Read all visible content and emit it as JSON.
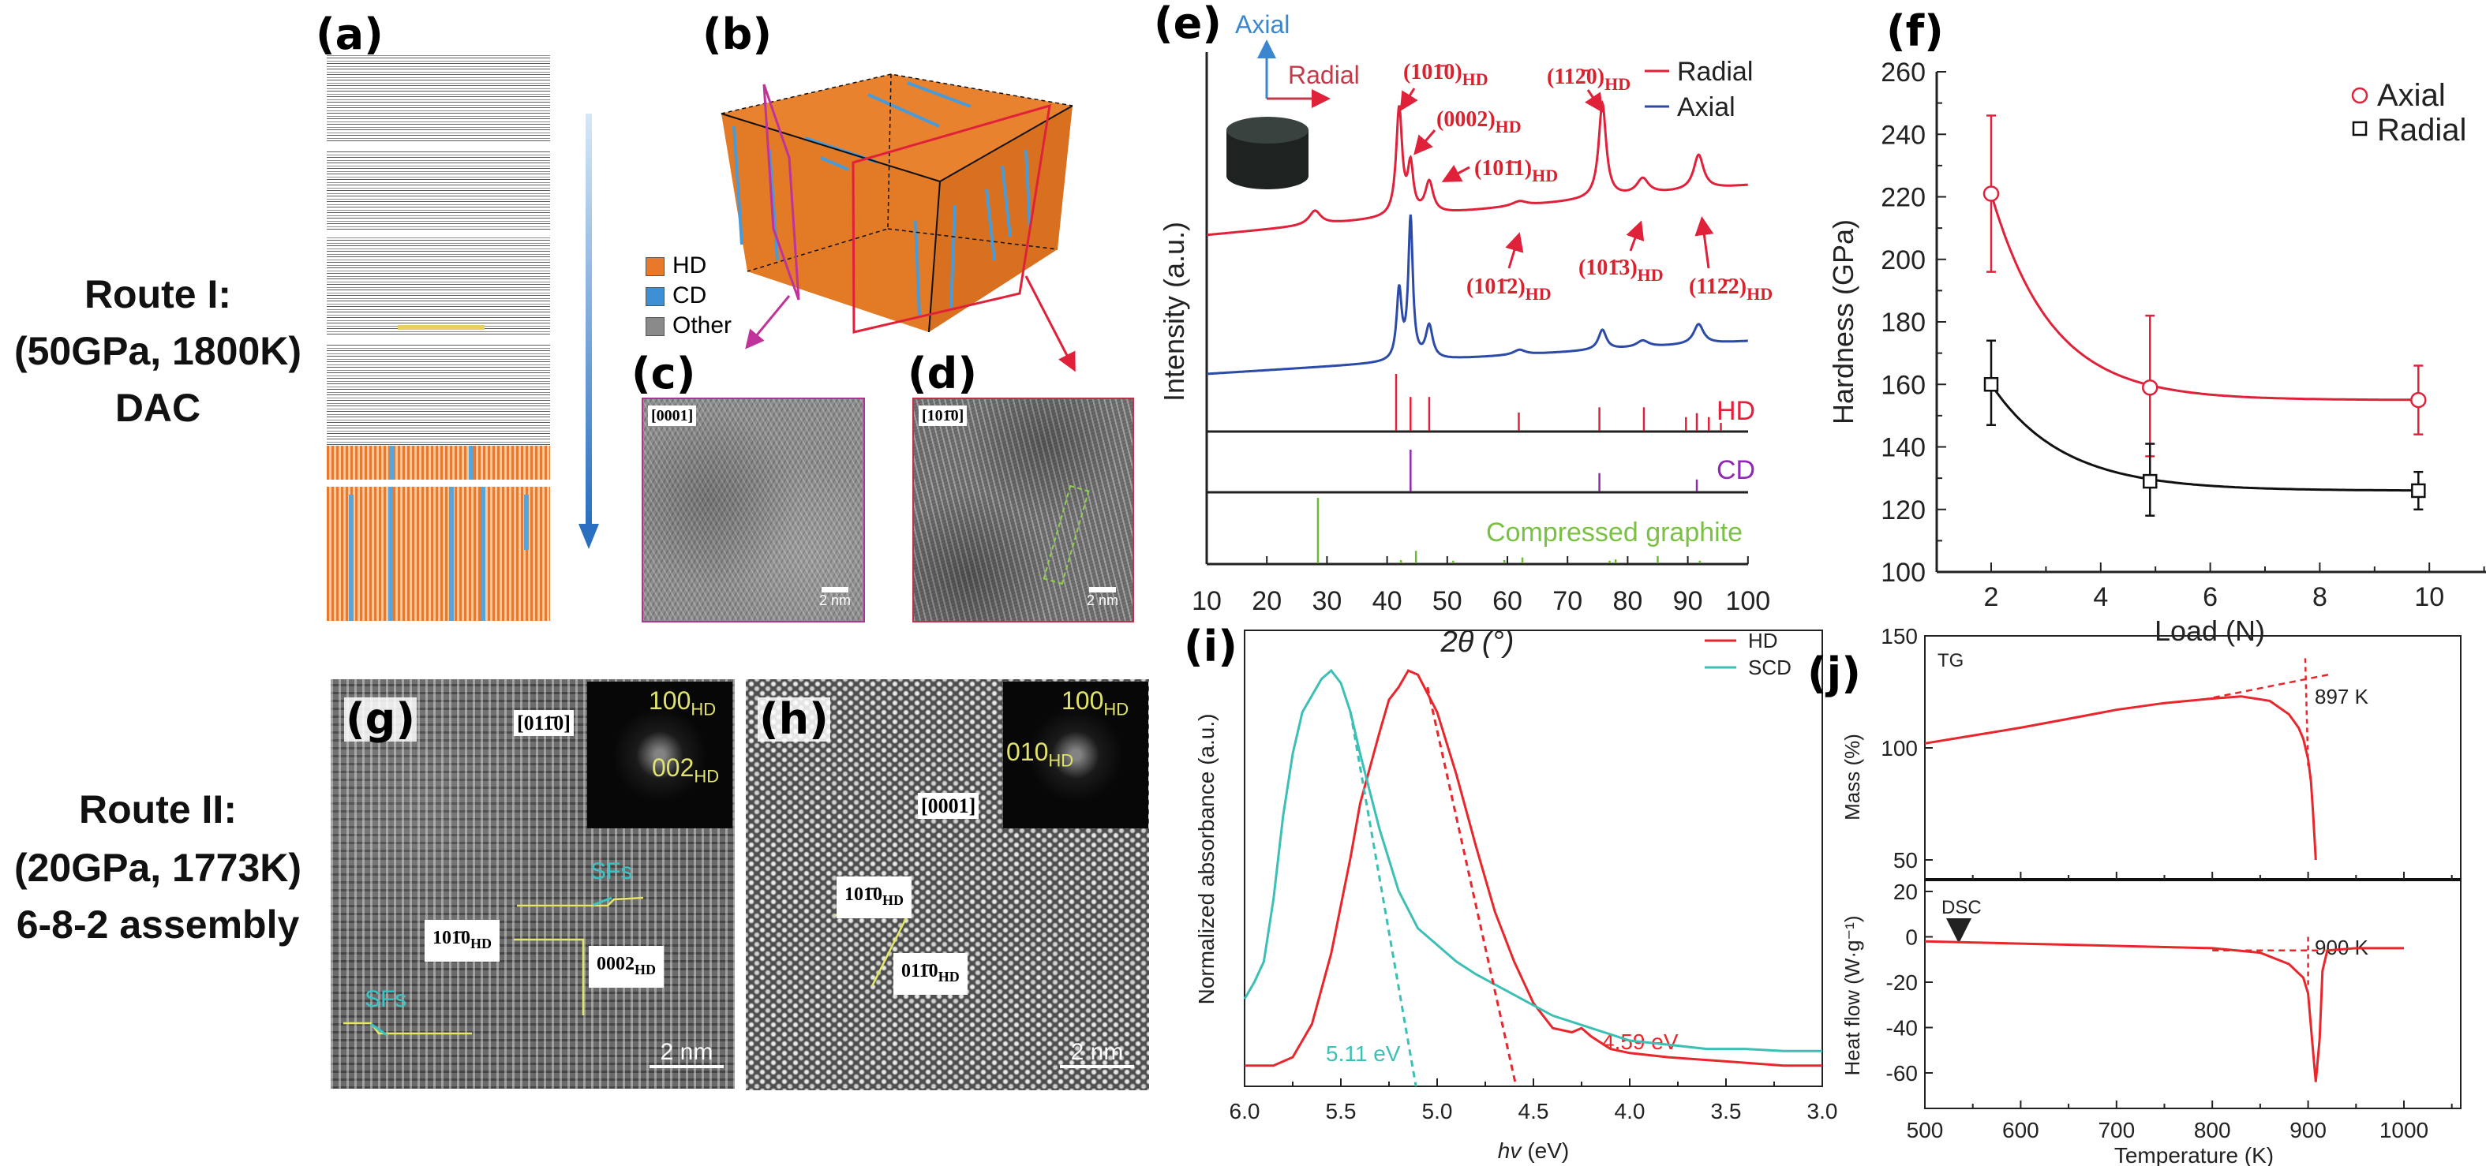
{
  "routes": [
    {
      "title": "Route I:",
      "conditions": "(50GPa, 1800K)",
      "method": "DAC"
    },
    {
      "title": "Route II:",
      "conditions": "(20GPa, 1773K)",
      "method": "6-8-2 assembly"
    }
  ],
  "panel_labels": {
    "a": "(a)",
    "b": "(b)",
    "c": "(c)",
    "d": "(d)",
    "e": "(e)",
    "f": "(f)",
    "g": "(g)",
    "h": "(h)",
    "i": "(i)",
    "j": "(j)"
  },
  "panel_b": {
    "legend": [
      {
        "label": "HD",
        "color": "#e8782a"
      },
      {
        "label": "CD",
        "color": "#3d8fd6"
      },
      {
        "label": "Other",
        "color": "#8a8a8a"
      }
    ]
  },
  "panel_c": {
    "zone_axis": "[0001]",
    "scale_bar": "2 nm"
  },
  "panel_d": {
    "zone_axis": "[101̄0]",
    "scale_bar": "2 nm"
  },
  "panel_g": {
    "zone_axis": "[011̄0]",
    "fft": [
      {
        "index": "100",
        "sub": "HD"
      },
      {
        "index": "002",
        "sub": "HD"
      }
    ],
    "planes": [
      {
        "index": "101̄0",
        "sub": "HD"
      },
      {
        "index": "0002",
        "sub": "HD"
      }
    ],
    "defects": [
      "SFs",
      "SFs"
    ],
    "scale_bar": "2 nm"
  },
  "panel_h": {
    "zone_axis": "[0001]",
    "fft": [
      {
        "index": "100",
        "sub": "HD"
      },
      {
        "index": "010",
        "sub": "HD"
      }
    ],
    "planes": [
      {
        "index": "101̄0",
        "sub": "HD"
      },
      {
        "index": "011̄0",
        "sub": "HD"
      }
    ],
    "scale_bar": "2 nm"
  },
  "chart_data": [
    {
      "panel": "e",
      "type": "line",
      "xlabel": "2θ (°)",
      "ylabel": "Intensity (a.u.)",
      "xlim": [
        10,
        100
      ],
      "xticks": [
        10,
        20,
        30,
        40,
        50,
        60,
        70,
        80,
        90,
        100
      ],
      "inset": {
        "axial": "Axial",
        "radial": "Radial"
      },
      "series": [
        {
          "name": "Radial",
          "color": "#e0213a",
          "baseline_slope": 0.0035,
          "peaks": [
            [
              28,
              0.09,
              1.2
            ],
            [
              42,
              0.68,
              0.6
            ],
            [
              43.9,
              0.3,
              0.55
            ],
            [
              47,
              0.2,
              0.8
            ],
            [
              62,
              0.03,
              1.5
            ],
            [
              75.8,
              0.6,
              0.75
            ],
            [
              82.5,
              0.1,
              1.2
            ],
            [
              91.8,
              0.22,
              1.0
            ]
          ]
        },
        {
          "name": "Axial",
          "color": "#2c4aa8",
          "baseline_slope": 0.0022,
          "peaks": [
            [
              42,
              0.42,
              0.5
            ],
            [
              43.9,
              0.85,
              0.45
            ],
            [
              47,
              0.2,
              0.7
            ],
            [
              62,
              0.03,
              1.2
            ],
            [
              75.8,
              0.12,
              0.8
            ],
            [
              82.5,
              0.04,
              1.2
            ],
            [
              91.8,
              0.12,
              1.0
            ]
          ]
        }
      ],
      "peak_labels": [
        {
          "index": "(101̄0)",
          "sub": "HD",
          "x": 42
        },
        {
          "index": "(0002)",
          "sub": "HD",
          "x": 43.9
        },
        {
          "index": "(101̄1)",
          "sub": "HD",
          "x": 47
        },
        {
          "index": "(101̄2)",
          "sub": "HD",
          "x": 62
        },
        {
          "index": "(112̄0)",
          "sub": "HD",
          "x": 75.8
        },
        {
          "index": "(101̄3)",
          "sub": "HD",
          "x": 82.5
        },
        {
          "index": "(112̄2)",
          "sub": "HD",
          "x": 91.8
        }
      ],
      "references": [
        {
          "name": "HD",
          "color": "#e0213a",
          "lines": [
            [
              41.5,
              1.0
            ],
            [
              43.9,
              0.6
            ],
            [
              47.0,
              0.6
            ],
            [
              61.9,
              0.33
            ],
            [
              75.3,
              0.42
            ],
            [
              82.7,
              0.42
            ],
            [
              89.7,
              0.25
            ],
            [
              91.5,
              0.32
            ],
            [
              93.5,
              0.25
            ],
            [
              95.5,
              0.15
            ]
          ]
        },
        {
          "name": "CD",
          "color": "#8e2bb0",
          "lines": [
            [
              43.9,
              1.0
            ],
            [
              75.3,
              0.45
            ],
            [
              91.5,
              0.3
            ]
          ]
        },
        {
          "name": "Compressed graphite",
          "color": "#6cbd35",
          "lines": [
            [
              28.5,
              1.0
            ],
            [
              42.3,
              0.06
            ],
            [
              44.8,
              0.2
            ],
            [
              51.0,
              0.05
            ],
            [
              59.5,
              0.06
            ],
            [
              62.5,
              0.1
            ],
            [
              77.0,
              0.05
            ],
            [
              78.0,
              0.07
            ],
            [
              85.0,
              0.12
            ],
            [
              92.0,
              0.05
            ]
          ]
        }
      ],
      "legend_position": "top-right"
    },
    {
      "panel": "f",
      "type": "scatter",
      "xlabel": "Load (N)",
      "ylabel": "Hardness (GPa)",
      "xlim": [
        1,
        11.1
      ],
      "ylim": [
        100,
        260
      ],
      "xticks": [
        2,
        4,
        6,
        8,
        10
      ],
      "yticks": [
        100,
        120,
        140,
        160,
        180,
        200,
        220,
        240,
        260
      ],
      "series": [
        {
          "name": "Axial",
          "marker": "circle",
          "color": "#e0213a",
          "x": [
            2,
            4.9,
            9.8
          ],
          "y": [
            221,
            159,
            155
          ],
          "err_low": [
            196,
            137,
            144
          ],
          "err_high": [
            246,
            182,
            166
          ],
          "fit": {
            "plateau": 155,
            "amplitude": 66,
            "decay": 1.1
          }
        },
        {
          "name": "Radial",
          "marker": "square",
          "color": "#111111",
          "x": [
            2,
            4.9,
            9.8
          ],
          "y": [
            160,
            129,
            126
          ],
          "err_low": [
            147,
            118,
            120
          ],
          "err_high": [
            174,
            141,
            132
          ],
          "fit": {
            "plateau": 126,
            "amplitude": 34,
            "decay": 1.3
          }
        }
      ],
      "legend_position": "top-right"
    },
    {
      "panel": "i",
      "type": "line",
      "xlabel_italic": "hv",
      "xlabel_unit": "(eV)",
      "ylabel": "Normalized absorbance (a.u.)",
      "xlim": [
        6.0,
        3.0
      ],
      "xticks": [
        "6.0",
        "5.5",
        "5.0",
        "4.5",
        "4.0",
        "3.5",
        "3.0"
      ],
      "series": [
        {
          "name": "HD",
          "color": "#e8262b",
          "x": [
            6.0,
            5.85,
            5.75,
            5.65,
            5.55,
            5.45,
            5.4,
            5.3,
            5.25,
            5.2,
            5.15,
            5.1,
            5.0,
            4.9,
            4.8,
            4.7,
            4.6,
            4.5,
            4.4,
            4.3,
            4.25,
            4.2,
            4.1,
            4.0,
            3.8,
            3.5,
            3.2,
            3.0
          ],
          "y": [
            0.05,
            0.05,
            0.07,
            0.15,
            0.32,
            0.55,
            0.68,
            0.85,
            0.93,
            0.96,
            1.0,
            0.99,
            0.9,
            0.75,
            0.58,
            0.42,
            0.3,
            0.2,
            0.14,
            0.13,
            0.14,
            0.12,
            0.09,
            0.08,
            0.07,
            0.06,
            0.05,
            0.05
          ]
        },
        {
          "name": "SCD",
          "color": "#3cbfb5",
          "x": [
            6.0,
            5.95,
            5.9,
            5.85,
            5.8,
            5.75,
            5.7,
            5.6,
            5.55,
            5.5,
            5.45,
            5.4,
            5.3,
            5.2,
            5.1,
            5.0,
            4.9,
            4.8,
            4.6,
            4.4,
            4.2,
            4.0,
            3.8,
            3.6,
            3.4,
            3.2,
            3.0
          ],
          "y": [
            0.21,
            0.25,
            0.3,
            0.45,
            0.65,
            0.8,
            0.9,
            0.98,
            1.0,
            0.97,
            0.9,
            0.8,
            0.62,
            0.47,
            0.38,
            0.34,
            0.3,
            0.27,
            0.22,
            0.17,
            0.14,
            0.11,
            0.1,
            0.09,
            0.09,
            0.085,
            0.085
          ]
        }
      ],
      "band_gaps": [
        {
          "label": "5.11 eV",
          "series": "SCD",
          "value": 5.11,
          "tangent_from": [
            5.45,
            0.9
          ]
        },
        {
          "label": "4.59 eV",
          "series": "HD",
          "value": 4.59,
          "tangent_from": [
            5.05,
            0.96
          ]
        }
      ],
      "legend_position": "top-right"
    },
    {
      "panel": "j",
      "type": "line",
      "xlabel": "Temperature (K)",
      "xlim": [
        500,
        1059
      ],
      "xticks": [
        500,
        600,
        700,
        800,
        900,
        1000
      ],
      "subplots": [
        {
          "name": "TG",
          "ylabel": "Mass (%)",
          "ylim": [
            41,
            150
          ],
          "yticks": [
            50,
            100,
            150
          ],
          "color": "#e8262b",
          "x": [
            500,
            550,
            600,
            650,
            700,
            750,
            800,
            830,
            860,
            880,
            890,
            895,
            900,
            903,
            905,
            908
          ],
          "y": [
            102,
            105.5,
            109,
            113,
            117,
            120,
            122,
            123,
            121,
            115,
            109,
            104,
            95,
            85,
            72,
            50
          ],
          "onset": {
            "label": "897 K",
            "value": 897
          }
        },
        {
          "name": "DSC",
          "ylabel": "Heat flow (W·g⁻¹)",
          "ylim": [
            -76,
            24
          ],
          "yticks": [
            20,
            0,
            -20,
            -40,
            -60
          ],
          "color": "#e8262b",
          "x": [
            500,
            600,
            700,
            800,
            850,
            880,
            895,
            900,
            904,
            908,
            912,
            915,
            920,
            950,
            1000
          ],
          "y": [
            -2,
            -3,
            -4,
            -5,
            -7,
            -12,
            -18,
            -25,
            -45,
            -64,
            -45,
            -15,
            -6,
            -5,
            -5
          ],
          "onset": {
            "label": "900 K",
            "value": 900
          }
        }
      ]
    }
  ]
}
